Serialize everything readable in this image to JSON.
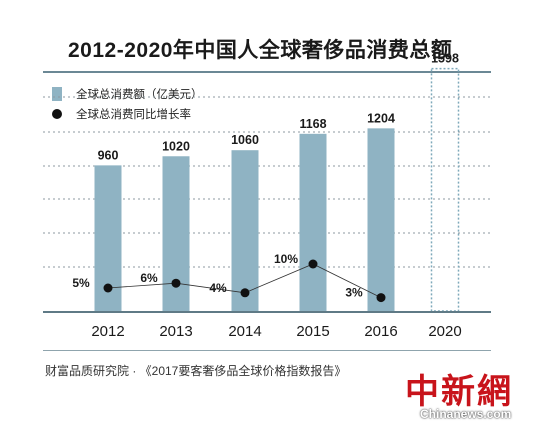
{
  "chart_data": {
    "type": "bar",
    "title": "2012-2020年中国人全球奢侈品消费总额",
    "categories": [
      "2012",
      "2013",
      "2014",
      "2015",
      "2016",
      "2020"
    ],
    "series": [
      {
        "name": "全球总消费额（亿美元）",
        "type": "bar",
        "values": [
          960,
          1020,
          1060,
          1168,
          1204,
          1598
        ],
        "forecast_index": 5,
        "color": "#8fb3c3"
      },
      {
        "name": "全球总消费同比增长率",
        "type": "line",
        "values": [
          5,
          6,
          4,
          10,
          3,
          null
        ],
        "labels": [
          "5%",
          "6%",
          "4%",
          "10%",
          "3%",
          ""
        ],
        "color": "#111111"
      }
    ],
    "grid": true,
    "legend_position": "top-left"
  },
  "source": "财富品质研究院 · 《2017要客奢侈品全球价格指数报告》",
  "watermark": {
    "cn": "中新網",
    "en": "Chinanews.com"
  }
}
